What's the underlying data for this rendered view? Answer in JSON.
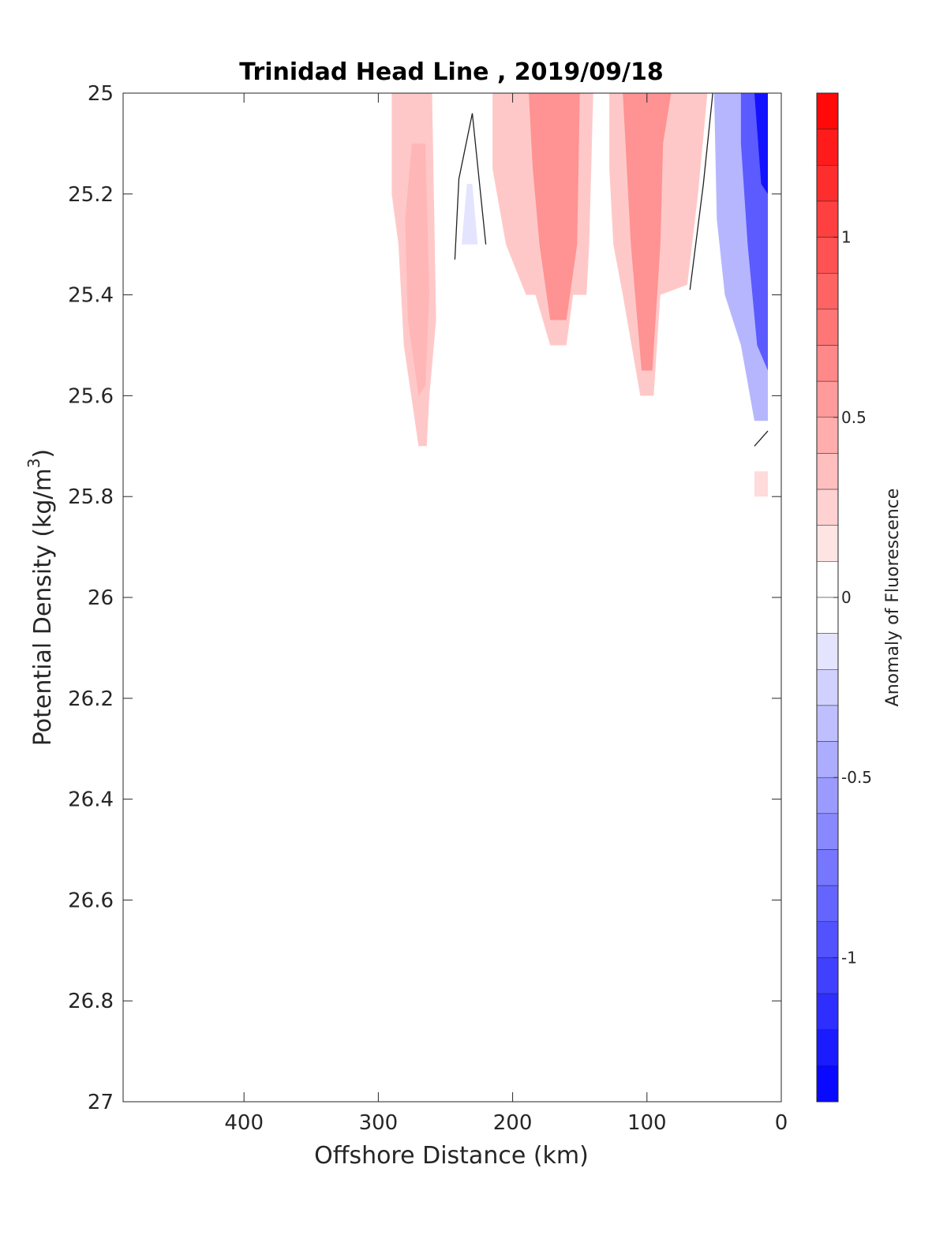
{
  "chart_data": {
    "type": "heatmap",
    "title": "Trinidad Head Line , 2019/09/18",
    "xlabel": "Offshore Distance (km)",
    "ylabel_base": "Potential Density (kg/m",
    "ylabel_sup": "3",
    "ylabel_end": ")",
    "xlim": [
      490,
      0
    ],
    "ylim": [
      25,
      27
    ],
    "x_reversed": true,
    "y_reversed": true,
    "xticks": [
      400,
      300,
      200,
      100,
      0
    ],
    "xtick_labels": [
      "400",
      "300",
      "200",
      "100",
      "0"
    ],
    "yticks": [
      25,
      25.2,
      25.4,
      25.6,
      25.8,
      26,
      26.2,
      26.4,
      26.6,
      26.8,
      27
    ],
    "ytick_labels": [
      "25",
      "25.2",
      "25.4",
      "25.6",
      "25.8",
      "26",
      "26.2",
      "26.4",
      "26.6",
      "26.8",
      "27"
    ],
    "colorbar": {
      "label": "Anomaly of Fluorescence",
      "range": [
        -1.4,
        1.4
      ],
      "levels": 28,
      "ticks": [
        1,
        0.5,
        0,
        -0.5,
        -1
      ],
      "tick_labels": [
        "1",
        "0.5",
        "0",
        "-0.5",
        "-1"
      ]
    },
    "regions": [
      {
        "name": "offshore-positive",
        "value": 0.3,
        "points": [
          [
            290,
            25
          ],
          [
            260,
            25
          ],
          [
            257,
            25.45
          ],
          [
            262,
            25.6
          ],
          [
            264,
            25.7
          ],
          [
            270,
            25.7
          ],
          [
            281,
            25.5
          ],
          [
            285,
            25.3
          ],
          [
            290,
            25.2
          ]
        ]
      },
      {
        "name": "offshore-positive-core",
        "value": 0.4,
        "points": [
          [
            275,
            25.1
          ],
          [
            265,
            25.1
          ],
          [
            262,
            25.4
          ],
          [
            265,
            25.58
          ],
          [
            270,
            25.6
          ],
          [
            278,
            25.45
          ],
          [
            280,
            25.25
          ]
        ]
      },
      {
        "name": "small-negative-patch",
        "value": -0.15,
        "points": [
          [
            238,
            25.3
          ],
          [
            226,
            25.3
          ],
          [
            230,
            25.18
          ],
          [
            234,
            25.18
          ]
        ]
      },
      {
        "name": "mid-positive",
        "value": 0.3,
        "points": [
          [
            215,
            25
          ],
          [
            140,
            25
          ],
          [
            143,
            25.3
          ],
          [
            145,
            25.4
          ],
          [
            155,
            25.4
          ],
          [
            160,
            25.5
          ],
          [
            172,
            25.5
          ],
          [
            183,
            25.4
          ],
          [
            190,
            25.4
          ],
          [
            205,
            25.3
          ],
          [
            215,
            25.15
          ]
        ]
      },
      {
        "name": "mid-positive-core",
        "value": 0.6,
        "points": [
          [
            188,
            25
          ],
          [
            150,
            25
          ],
          [
            152,
            25.3
          ],
          [
            160,
            25.45
          ],
          [
            172,
            25.45
          ],
          [
            180,
            25.3
          ],
          [
            185,
            25.15
          ]
        ]
      },
      {
        "name": "near-positive",
        "value": 0.3,
        "points": [
          [
            128,
            25
          ],
          [
            55,
            25
          ],
          [
            62,
            25.2
          ],
          [
            70,
            25.38
          ],
          [
            90,
            25.4
          ],
          [
            95,
            25.6
          ],
          [
            105,
            25.6
          ],
          [
            118,
            25.4
          ],
          [
            125,
            25.3
          ],
          [
            128,
            25.15
          ]
        ]
      },
      {
        "name": "near-positive-core",
        "value": 0.6,
        "points": [
          [
            118,
            25
          ],
          [
            82,
            25
          ],
          [
            88,
            25.1
          ],
          [
            90,
            25.3
          ],
          [
            96,
            25.55
          ],
          [
            104,
            25.55
          ],
          [
            112,
            25.3
          ],
          [
            116,
            25.1
          ]
        ]
      },
      {
        "name": "coastal-negative",
        "value": -0.4,
        "points": [
          [
            50,
            25
          ],
          [
            10,
            25
          ],
          [
            10,
            25.65
          ],
          [
            20,
            25.65
          ],
          [
            30,
            25.5
          ],
          [
            42,
            25.4
          ],
          [
            48,
            25.25
          ]
        ]
      },
      {
        "name": "coastal-negative-core",
        "value": -0.9,
        "points": [
          [
            30,
            25
          ],
          [
            10,
            25
          ],
          [
            10,
            25.55
          ],
          [
            18,
            25.5
          ],
          [
            25,
            25.3
          ],
          [
            30,
            25.1
          ]
        ]
      },
      {
        "name": "coastal-negative-edge",
        "value": -1.3,
        "points": [
          [
            20,
            25
          ],
          [
            10,
            25
          ],
          [
            10,
            25.2
          ],
          [
            15,
            25.18
          ]
        ]
      },
      {
        "name": "deep-positive-patch",
        "value": 0.2,
        "points": [
          [
            20,
            25.75
          ],
          [
            10,
            25.75
          ],
          [
            10,
            25.8
          ],
          [
            20,
            25.8
          ]
        ]
      }
    ],
    "contours": [
      {
        "name": "zero-contour-offshore",
        "points": [
          [
            243,
            25.33
          ],
          [
            240,
            25.17
          ],
          [
            230,
            25.04
          ],
          [
            225,
            25.17
          ],
          [
            220,
            25.3
          ]
        ]
      },
      {
        "name": "zero-contour-coastal",
        "points": [
          [
            51,
            25
          ],
          [
            58,
            25.18
          ],
          [
            68,
            25.39
          ]
        ]
      },
      {
        "name": "zero-contour-deep",
        "points": [
          [
            20,
            25.7
          ],
          [
            10,
            25.67
          ]
        ]
      }
    ]
  }
}
